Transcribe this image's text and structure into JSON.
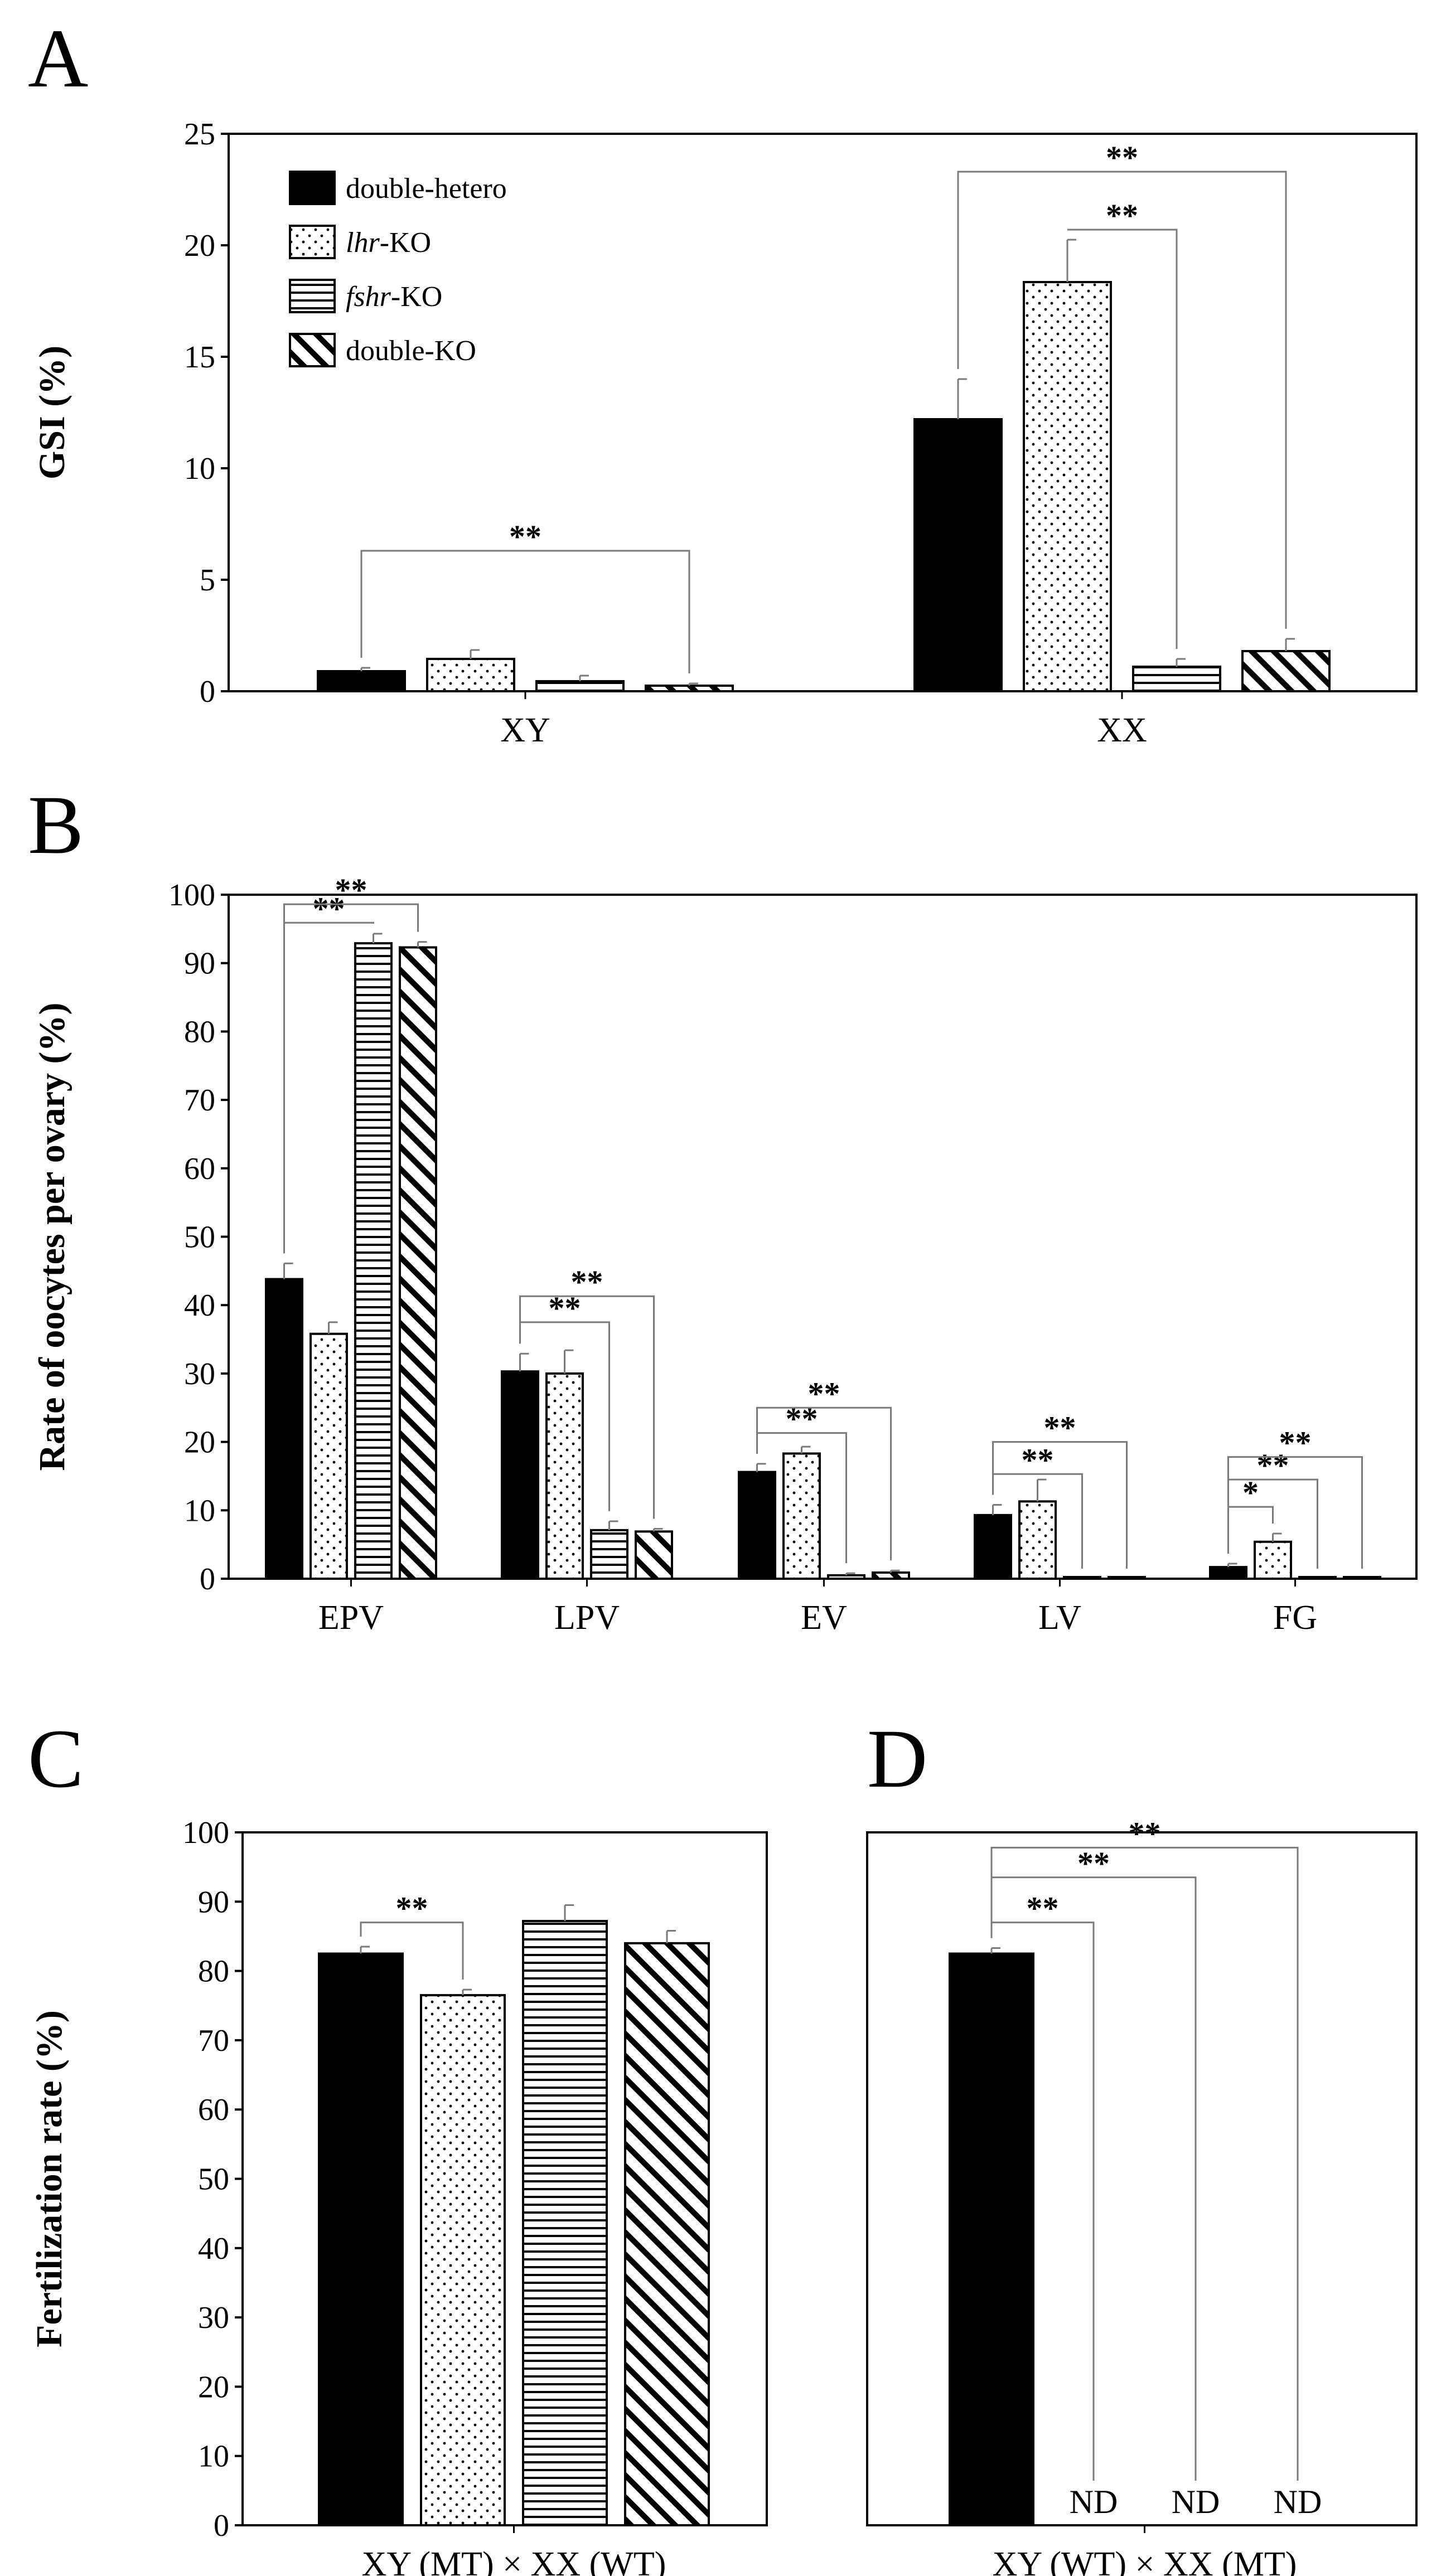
{
  "colors": {
    "double_hetero": "#000000",
    "lhr_ko": "#ffffff",
    "fshr_ko": "#ffffff",
    "double_ko": "#ffffff",
    "axis": "#000000",
    "bracket": "#7a7a7a"
  },
  "legend": [
    {
      "key": "double_hetero",
      "pattern": "solid",
      "text": "double-hetero",
      "gene": "",
      "suffix": ""
    },
    {
      "key": "lhr_ko",
      "pattern": "dots",
      "text": "",
      "gene": "lhr",
      "suffix": "-KO"
    },
    {
      "key": "fshr_ko",
      "pattern": "hlines",
      "text": "",
      "gene": "fshr",
      "suffix": "-KO"
    },
    {
      "key": "double_ko",
      "pattern": "diag",
      "text": "double-KO",
      "gene": "",
      "suffix": ""
    }
  ],
  "chart_data": [
    {
      "id": "A",
      "panel_label": "A",
      "type": "bar",
      "ylabel": "GSI (%)",
      "ylim": [
        0,
        25
      ],
      "yticks": [
        0,
        5,
        10,
        15,
        20,
        25
      ],
      "categories": [
        "XY",
        "XX"
      ],
      "series": [
        {
          "name": "double-hetero",
          "values": [
            0.9,
            12.2
          ],
          "errors": [
            0.15,
            1.8
          ]
        },
        {
          "name": "lhr-KO",
          "values": [
            1.45,
            18.35
          ],
          "errors": [
            0.4,
            1.9
          ]
        },
        {
          "name": "fshr-KO",
          "values": [
            0.45,
            1.1
          ],
          "errors": [
            0.25,
            0.35
          ]
        },
        {
          "name": "double-KO",
          "values": [
            0.25,
            1.8
          ],
          "errors": [
            0.1,
            0.55
          ]
        }
      ],
      "significance": [
        {
          "category": 0,
          "from": 0,
          "to": 3,
          "y": 6.3,
          "label": "**"
        },
        {
          "category": 1,
          "from": 1,
          "to": 2,
          "y": 20.7,
          "label": "**"
        },
        {
          "category": 1,
          "from": 0,
          "to": 3,
          "y": 23.3,
          "label": "**"
        }
      ]
    },
    {
      "id": "B",
      "panel_label": "B",
      "type": "bar",
      "ylabel": "Rate of oocytes per ovary (%)",
      "ylim": [
        0,
        100
      ],
      "yticks": [
        0,
        10,
        20,
        30,
        40,
        50,
        60,
        70,
        80,
        90,
        100
      ],
      "categories": [
        "EPV",
        "LPV",
        "EV",
        "LV",
        "FG"
      ],
      "series": [
        {
          "name": "double-hetero",
          "values": [
            43.8,
            30.3,
            15.6,
            9.3,
            1.7
          ],
          "errors": [
            2.3,
            2.6,
            1.2,
            1.5,
            0.5
          ]
        },
        {
          "name": "lhr-KO",
          "values": [
            35.8,
            30.0,
            18.3,
            11.3,
            5.4
          ],
          "errors": [
            1.7,
            3.4,
            1.0,
            3.2,
            1.2
          ]
        },
        {
          "name": "fshr-KO",
          "values": [
            92.9,
            7.1,
            0.5,
            0,
            0
          ],
          "errors": [
            1.4,
            1.3,
            0.3,
            0,
            0
          ]
        },
        {
          "name": "double-KO",
          "values": [
            92.3,
            6.9,
            0.9,
            0,
            0
          ],
          "errors": [
            0.8,
            0.4,
            0.3,
            0,
            0
          ]
        }
      ],
      "significance": [
        {
          "category": 0,
          "from": 0,
          "to": 2,
          "y": 95.9,
          "label": "**"
        },
        {
          "category": 0,
          "from": 0,
          "to": 3,
          "y": 98.6,
          "label": "**"
        },
        {
          "category": 1,
          "from": 0,
          "to": 2,
          "y": 37.5,
          "label": "**"
        },
        {
          "category": 1,
          "from": 0,
          "to": 3,
          "y": 41.3,
          "label": "**"
        },
        {
          "category": 2,
          "from": 0,
          "to": 2,
          "y": 21.3,
          "label": "**"
        },
        {
          "category": 2,
          "from": 0,
          "to": 3,
          "y": 25.0,
          "label": "**"
        },
        {
          "category": 3,
          "from": 0,
          "to": 2,
          "y": 15.3,
          "label": "**"
        },
        {
          "category": 3,
          "from": 0,
          "to": 3,
          "y": 20.0,
          "label": "**"
        },
        {
          "category": 4,
          "from": 0,
          "to": 1,
          "y": 10.5,
          "label": "*"
        },
        {
          "category": 4,
          "from": 0,
          "to": 2,
          "y": 14.5,
          "label": "**"
        },
        {
          "category": 4,
          "from": 0,
          "to": 3,
          "y": 17.8,
          "label": "**"
        }
      ]
    },
    {
      "id": "C",
      "panel_label": "C",
      "type": "bar",
      "ylabel": "Fertilization rate (%)",
      "ylim": [
        0,
        100
      ],
      "yticks": [
        0,
        10,
        20,
        30,
        40,
        50,
        60,
        70,
        80,
        90,
        100
      ],
      "categories": [
        "XY (MT) × XX (WT)"
      ],
      "series": [
        {
          "name": "double-hetero",
          "values": [
            82.5
          ],
          "errors": [
            1.0
          ]
        },
        {
          "name": "lhr-KO",
          "values": [
            76.5
          ],
          "errors": [
            0.8
          ]
        },
        {
          "name": "fshr-KO",
          "values": [
            87.2
          ],
          "errors": [
            2.3
          ]
        },
        {
          "name": "double-KO",
          "values": [
            84.0
          ],
          "errors": [
            1.8
          ]
        }
      ],
      "significance": [
        {
          "category": 0,
          "from": 0,
          "to": 1,
          "y": 87.0,
          "label": "**"
        }
      ]
    },
    {
      "id": "D",
      "panel_label": "D",
      "type": "bar",
      "ylabel": "",
      "ylim": [
        0,
        100
      ],
      "yticks": [],
      "categories": [
        "XY (WT) × XX (MT)"
      ],
      "series": [
        {
          "name": "double-hetero",
          "values": [
            82.5
          ],
          "errors": [
            0.8
          ]
        },
        {
          "name": "lhr-KO",
          "values": [
            null
          ],
          "errors": [
            0
          ],
          "label": "ND"
        },
        {
          "name": "fshr-KO",
          "values": [
            null
          ],
          "errors": [
            0
          ],
          "label": "ND"
        },
        {
          "name": "double-KO",
          "values": [
            null
          ],
          "errors": [
            0
          ],
          "label": "ND"
        }
      ],
      "significance": [
        {
          "category": 0,
          "from": 0,
          "to": 1,
          "y": 87.0,
          "label": "**"
        },
        {
          "category": 0,
          "from": 0,
          "to": 2,
          "y": 93.5,
          "label": "**"
        },
        {
          "category": 0,
          "from": 0,
          "to": 3,
          "y": 97.8,
          "label": "**"
        }
      ]
    }
  ]
}
